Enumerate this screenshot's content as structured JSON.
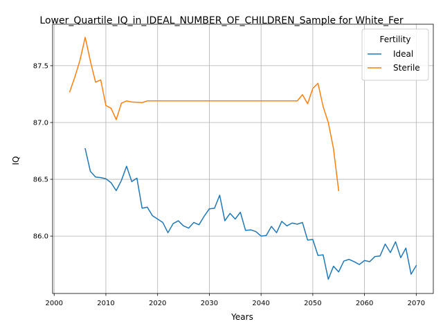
{
  "chart_data": {
    "type": "line",
    "title": "Lower_Quartile_IQ_in_IDEAL_NUMBER_OF_CHILDREN_Sample for White_Fer",
    "xlabel": "Years",
    "ylabel": "IQ",
    "xlim": [
      1999.7,
      2073.3
    ],
    "ylim": [
      85.495,
      87.865
    ],
    "x_ticks": [
      2000,
      2010,
      2020,
      2030,
      2040,
      2050,
      2060,
      2070
    ],
    "y_ticks": [
      86.0,
      86.5,
      87.0,
      87.5
    ],
    "x_tick_labels": [
      "2000",
      "2010",
      "2020",
      "2030",
      "2040",
      "2050",
      "2060",
      "2070"
    ],
    "y_tick_labels": [
      "86.0",
      "86.5",
      "87.0",
      "87.5"
    ],
    "grid": true,
    "legend": {
      "title": "Fertility",
      "placement": "top-right"
    },
    "series": [
      {
        "name": "Ideal",
        "color": "#1f77b4",
        "x": [
          2006,
          2007,
          2008,
          2009,
          2010,
          2011,
          2012,
          2013,
          2014,
          2015,
          2016,
          2017,
          2018,
          2019,
          2020,
          2021,
          2022,
          2023,
          2024,
          2025,
          2026,
          2027,
          2028,
          2029,
          2030,
          2031,
          2032,
          2033,
          2034,
          2035,
          2036,
          2037,
          2038,
          2039,
          2040,
          2041,
          2042,
          2043,
          2044,
          2045,
          2046,
          2047,
          2048,
          2049,
          2050,
          2051,
          2052,
          2053,
          2054,
          2055,
          2056,
          2057,
          2058,
          2059,
          2060,
          2061,
          2062,
          2063,
          2064,
          2065,
          2066,
          2067,
          2068,
          2069,
          2070
        ],
        "values": [
          86.77,
          86.57,
          86.52,
          86.515,
          86.505,
          86.47,
          86.4,
          86.49,
          86.615,
          86.48,
          86.51,
          86.245,
          86.255,
          86.18,
          86.15,
          86.12,
          86.03,
          86.11,
          86.135,
          86.09,
          86.07,
          86.12,
          86.1,
          86.175,
          86.24,
          86.245,
          86.36,
          86.135,
          86.2,
          86.15,
          86.21,
          86.05,
          86.055,
          86.04,
          86.0,
          86.005,
          86.085,
          86.03,
          86.13,
          86.09,
          86.115,
          86.105,
          86.12,
          85.965,
          85.97,
          85.83,
          85.835,
          85.62,
          85.735,
          85.685,
          85.78,
          85.795,
          85.775,
          85.75,
          85.785,
          85.775,
          85.82,
          85.825,
          85.93,
          85.855,
          85.95,
          85.81,
          85.895,
          85.665,
          85.74
        ]
      },
      {
        "name": "Sterile",
        "color": "#ff7f0e",
        "x": [
          2003,
          2004,
          2005,
          2006,
          2007,
          2008,
          2009,
          2010,
          2011,
          2012,
          2013,
          2014,
          2015,
          2016,
          2017,
          2018,
          2019,
          2020,
          2021,
          2022,
          2023,
          2024,
          2025,
          2026,
          2027,
          2028,
          2029,
          2030,
          2031,
          2032,
          2033,
          2034,
          2035,
          2036,
          2037,
          2038,
          2039,
          2040,
          2041,
          2042,
          2043,
          2044,
          2045,
          2046,
          2047,
          2048,
          2049,
          2050,
          2051,
          2052,
          2053,
          2054,
          2055
        ],
        "values": [
          87.27,
          87.4,
          87.55,
          87.75,
          87.54,
          87.355,
          87.375,
          87.15,
          87.125,
          87.025,
          87.17,
          87.19,
          87.18,
          87.178,
          87.175,
          87.19,
          87.19,
          87.19,
          87.19,
          87.19,
          87.19,
          87.19,
          87.19,
          87.19,
          87.19,
          87.19,
          87.19,
          87.19,
          87.19,
          87.19,
          87.19,
          87.19,
          87.19,
          87.19,
          87.19,
          87.19,
          87.19,
          87.19,
          87.19,
          87.19,
          87.19,
          87.19,
          87.19,
          87.19,
          87.19,
          87.245,
          87.165,
          87.3,
          87.345,
          87.14,
          87.0,
          86.77,
          86.4
        ]
      }
    ]
  }
}
